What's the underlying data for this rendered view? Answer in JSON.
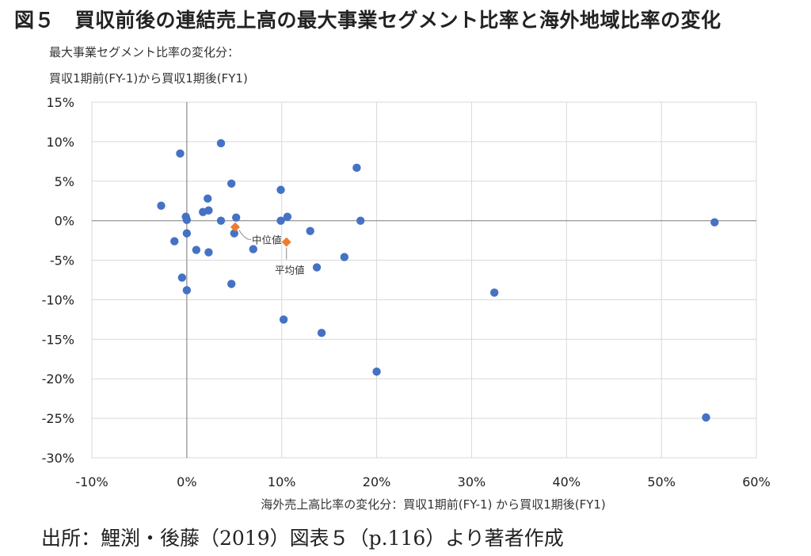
{
  "figure": {
    "title": "図５　買収前後の連結売上高の最大事業セグメント比率と海外地域比率の変化",
    "source": "出所：鯉渕・後藤（2019）図表５（p.116）より著者作成"
  },
  "chart_data": {
    "type": "scatter",
    "ylabel_lines": [
      "最大事業セグメント比率の変化分：",
      "買収1期前(FY-1)から買収1期後(FY1)"
    ],
    "xlabel": "海外売上高比率の変化分：買収1期前(FY-1) から買収1期後(FY1)",
    "xlim": [
      -0.1,
      0.6
    ],
    "ylim": [
      -0.3,
      0.15
    ],
    "x_ticks": [
      -0.1,
      0.0,
      0.1,
      0.2,
      0.3,
      0.4,
      0.5,
      0.6
    ],
    "x_tick_labels": [
      "-10%",
      "0%",
      "10%",
      "20%",
      "30%",
      "40%",
      "50%",
      "60%"
    ],
    "y_ticks": [
      0.15,
      0.1,
      0.05,
      0.0,
      -0.05,
      -0.1,
      -0.15,
      -0.2,
      -0.25,
      -0.3
    ],
    "y_tick_labels": [
      "15%",
      "10%",
      "5%",
      "0%",
      "-5%",
      "-10%",
      "-15%",
      "-20%",
      "-25%",
      "-30%"
    ],
    "grid": true,
    "point_color": "#4472c4",
    "summary_color": "#ed7d31",
    "points": [
      {
        "x": -0.027,
        "y": 0.019
      },
      {
        "x": -0.007,
        "y": 0.085
      },
      {
        "x": -0.005,
        "y": -0.072
      },
      {
        "x": -0.013,
        "y": -0.026
      },
      {
        "x": -0.001,
        "y": 0.005
      },
      {
        "x": 0.0,
        "y": 0.001
      },
      {
        "x": 0.0,
        "y": -0.016
      },
      {
        "x": 0.0,
        "y": -0.088
      },
      {
        "x": 0.01,
        "y": -0.037
      },
      {
        "x": 0.017,
        "y": 0.011
      },
      {
        "x": 0.022,
        "y": 0.028
      },
      {
        "x": 0.023,
        "y": 0.013
      },
      {
        "x": 0.023,
        "y": -0.04
      },
      {
        "x": 0.036,
        "y": 0.098
      },
      {
        "x": 0.036,
        "y": 0.0
      },
      {
        "x": 0.047,
        "y": 0.047
      },
      {
        "x": 0.047,
        "y": -0.08
      },
      {
        "x": 0.05,
        "y": -0.016
      },
      {
        "x": 0.052,
        "y": 0.004
      },
      {
        "x": 0.07,
        "y": -0.036
      },
      {
        "x": 0.099,
        "y": 0.039
      },
      {
        "x": 0.099,
        "y": 0.0
      },
      {
        "x": 0.102,
        "y": -0.125
      },
      {
        "x": 0.106,
        "y": 0.005
      },
      {
        "x": 0.13,
        "y": -0.013
      },
      {
        "x": 0.137,
        "y": -0.059
      },
      {
        "x": 0.142,
        "y": -0.142
      },
      {
        "x": 0.166,
        "y": -0.046
      },
      {
        "x": 0.179,
        "y": 0.067
      },
      {
        "x": 0.183,
        "y": 0.0
      },
      {
        "x": 0.2,
        "y": -0.191
      },
      {
        "x": 0.324,
        "y": -0.091
      },
      {
        "x": 0.547,
        "y": -0.249
      },
      {
        "x": 0.556,
        "y": -0.002
      }
    ],
    "summary": [
      {
        "name": "中位値",
        "x": 0.051,
        "y": -0.008
      },
      {
        "name": "平均値",
        "x": 0.105,
        "y": -0.027
      }
    ]
  }
}
